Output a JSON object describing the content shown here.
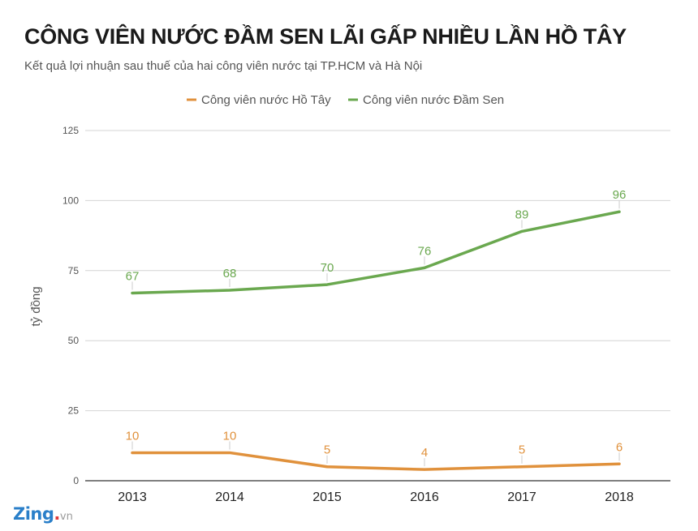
{
  "title": "CÔNG VIÊN NƯỚC ĐẦM SEN LÃI GẤP NHIỀU LẦN HỒ TÂY",
  "subtitle": "Kết quả lợi nhuận sau thuế của hai công viên nước tại TP.HCM và Hà Nội",
  "logo": {
    "brand": "Zing",
    "tld": "vn"
  },
  "colors": {
    "ho_tay": "#e0913c",
    "dam_sen": "#6aa84f",
    "grid": "#d4d4d4"
  },
  "chart_data": {
    "type": "line",
    "x": [
      "2013",
      "2014",
      "2015",
      "2016",
      "2017",
      "2018"
    ],
    "ylabel": "tỷ đồng",
    "ylim": [
      0,
      125
    ],
    "yticks": [
      "0",
      "25",
      "50",
      "75",
      "100",
      "125"
    ],
    "grid": true,
    "legend_position": "top",
    "series": [
      {
        "name": "Công viên nước Hồ Tây",
        "values": [
          10,
          10,
          5,
          4,
          5,
          6
        ],
        "labels": [
          "10",
          "10",
          "5",
          "4",
          "5",
          "6"
        ],
        "color": "#e0913c"
      },
      {
        "name": "Công viên nước Đầm Sen",
        "values": [
          67,
          68,
          70,
          76,
          89,
          96
        ],
        "labels": [
          "67",
          "68",
          "70",
          "76",
          "89",
          "96"
        ],
        "color": "#6aa84f"
      }
    ]
  }
}
